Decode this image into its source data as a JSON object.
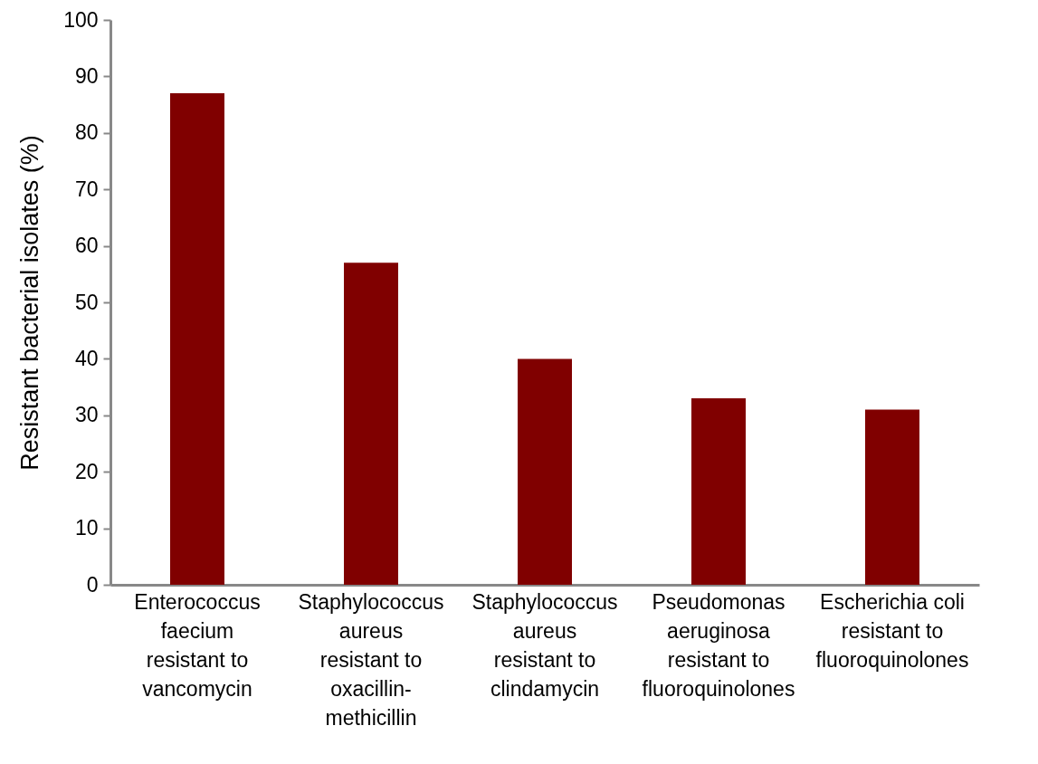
{
  "chart_data": {
    "type": "bar",
    "ylabel": "Resistant bacterial isolates (%)",
    "categories": [
      "Enterococcus\nfaecium\nresistant to\nvancomycin",
      "Staphylococcus\naureus\nresistant to\noxacillin-\nmethicillin",
      "Staphylococcus\naureus\nresistant to\nclindamycin",
      "Pseudomonas\naeruginosa\nresistant to\nfluoroquinolones",
      "Escherichia coli\nresistant to\nfluoroquinolones"
    ],
    "values": [
      87,
      57,
      40,
      33,
      31
    ],
    "color": "#800000",
    "ylim": [
      0,
      100
    ],
    "yticks": [
      0,
      10,
      20,
      30,
      40,
      50,
      60,
      70,
      80,
      90,
      100
    ],
    "grid": false
  }
}
